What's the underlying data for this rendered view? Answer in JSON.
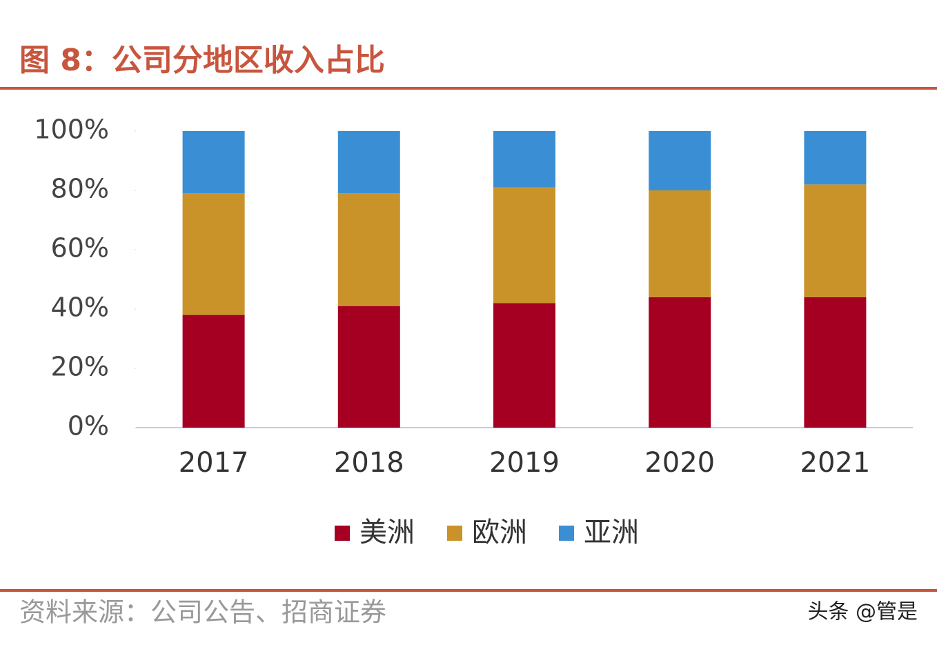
{
  "header": {
    "title": "图 8：公司分地区收入占比"
  },
  "chart_data": {
    "type": "stacked-bar",
    "categories": [
      "2017",
      "2018",
      "2019",
      "2020",
      "2021"
    ],
    "series": [
      {
        "name": "美洲",
        "color": "#a50021",
        "values": [
          38,
          41,
          42,
          44,
          44
        ]
      },
      {
        "name": "欧洲",
        "color": "#c9932a",
        "values": [
          41,
          38,
          39,
          36,
          38
        ]
      },
      {
        "name": "亚洲",
        "color": "#3a8fd4",
        "values": [
          21,
          21,
          19,
          20,
          18
        ]
      }
    ],
    "ylim": [
      0,
      100
    ],
    "yticks": [
      {
        "value": 0,
        "label": "0%"
      },
      {
        "value": 20,
        "label": "20%"
      },
      {
        "value": 40,
        "label": "40%"
      },
      {
        "value": 60,
        "label": "60%"
      },
      {
        "value": 80,
        "label": "80%"
      },
      {
        "value": 100,
        "label": "100%"
      }
    ],
    "legend": "bottom"
  },
  "footer": {
    "source": "资料来源：公司公告、招商证券",
    "watermark": "头条 @管是"
  }
}
